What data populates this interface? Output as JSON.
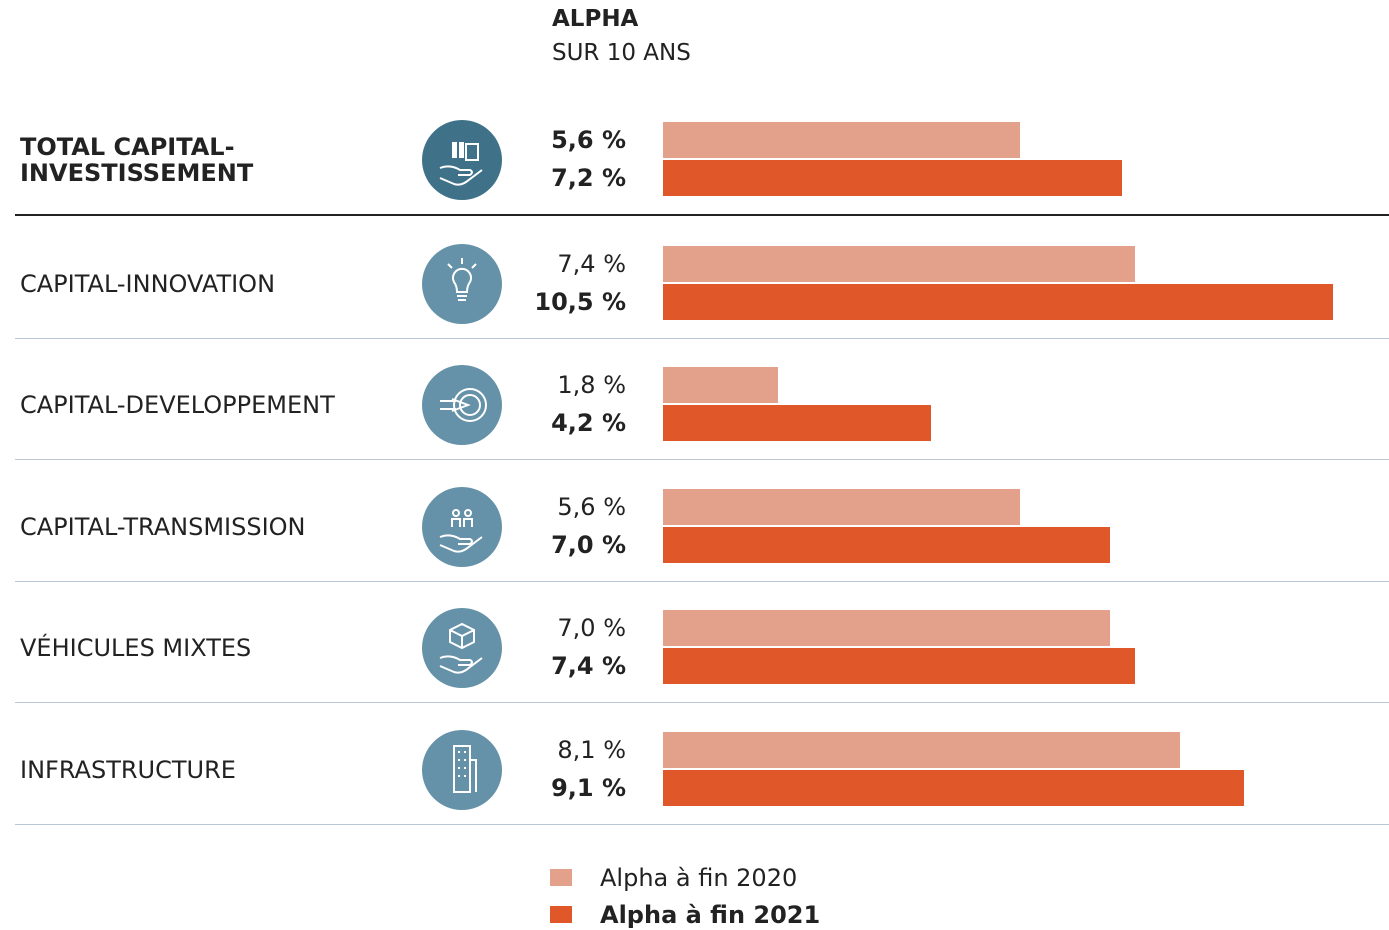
{
  "chart_data": {
    "type": "bar",
    "orientation": "horizontal",
    "title": "ALPHA",
    "subtitle": "SUR 10 ANS",
    "categories": [
      "TOTAL CAPITAL-INVESTISSEMENT",
      "CAPITAL-INNOVATION",
      "CAPITAL-DEVELOPPEMENT",
      "CAPITAL-TRANSMISSION",
      "VÉHICULES MIXTES",
      "INFRASTRUCTURE"
    ],
    "series": [
      {
        "name": "Alpha à fin 2020",
        "color": "#e3a08a",
        "values": [
          5.6,
          7.4,
          1.8,
          5.6,
          7.0,
          8.1
        ],
        "value_labels": [
          "5,6 %",
          "7,4 %",
          "1,8 %",
          "5,6 %",
          "7,0 %",
          "8,1 %"
        ]
      },
      {
        "name": "Alpha à fin 2021",
        "color": "#e0572a",
        "values": [
          7.2,
          10.5,
          4.2,
          7.0,
          7.4,
          9.1
        ],
        "value_labels": [
          "7,2 %",
          "10,5 %",
          "4,2 %",
          "7,0 %",
          "7,4 %",
          "9,1 %"
        ]
      }
    ]
  }
}
